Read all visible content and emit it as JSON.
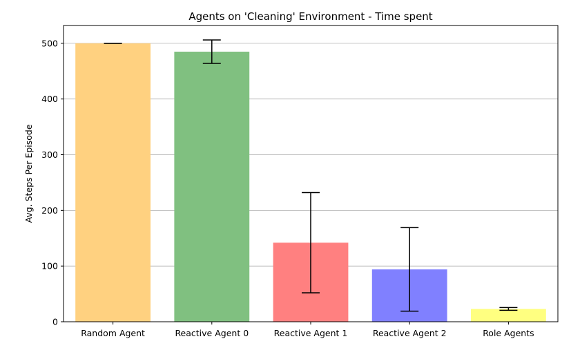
{
  "chart_data": {
    "type": "bar",
    "title": "Agents on 'Cleaning' Environment - Time spent",
    "xlabel": "",
    "ylabel": "Avg. Steps Per Episode",
    "categories": [
      "Random Agent",
      "Reactive Agent 0",
      "Reactive Agent 1",
      "Reactive Agent 2",
      "Role Agents"
    ],
    "values": [
      500,
      485,
      142,
      94,
      23
    ],
    "error": [
      0,
      21,
      90,
      75,
      2.5
    ],
    "colors": [
      "#FFD180",
      "#80C080",
      "#FF8080",
      "#8080FF",
      "#FFFF80"
    ],
    "ylim": [
      0,
      532
    ],
    "yticks": [
      0,
      100,
      200,
      300,
      400,
      500
    ],
    "grid": "y"
  }
}
